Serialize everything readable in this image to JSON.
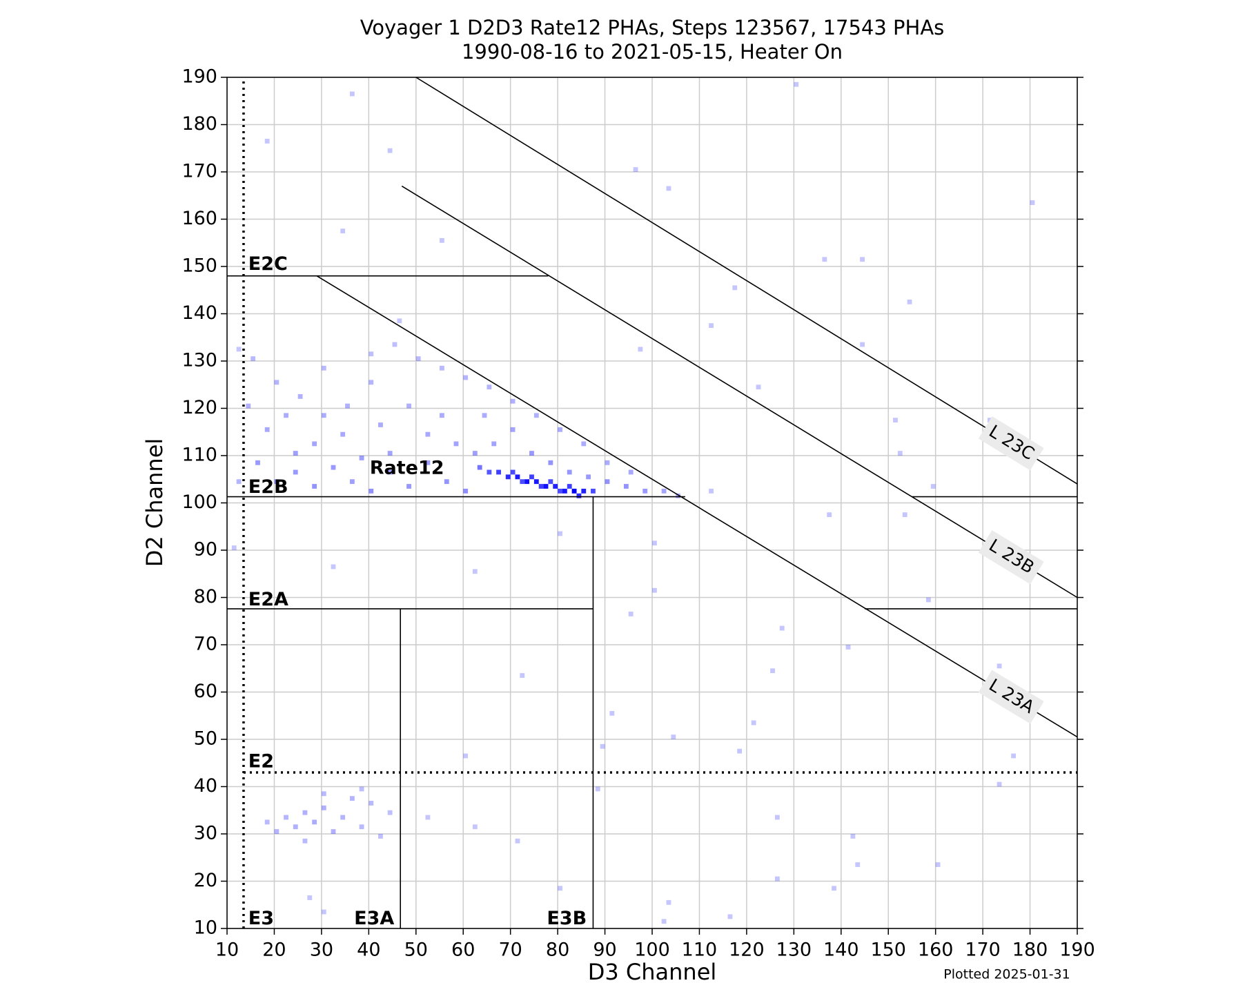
{
  "chart_data": {
    "type": "heatmap",
    "title": "Voyager 1 D2D3 Rate12 PHAs, Steps 123567, 17543 PHAs",
    "subtitle": "1990-08-16 to 2021-05-15, Heater On",
    "xlabel": "D3 Channel",
    "ylabel": "D2 Channel",
    "footer": "Plotted 2025-01-31",
    "xlim": [
      10,
      190
    ],
    "ylim": [
      10,
      190
    ],
    "xticks": [
      10,
      20,
      30,
      40,
      50,
      60,
      70,
      80,
      90,
      100,
      110,
      120,
      130,
      140,
      150,
      160,
      170,
      180,
      190
    ],
    "yticks": [
      10,
      20,
      30,
      40,
      50,
      60,
      70,
      80,
      90,
      100,
      110,
      120,
      130,
      140,
      150,
      160,
      170,
      180,
      190
    ],
    "grid": true,
    "color": "#0000ff",
    "cells": [
      {
        "x": 63,
        "y": 107,
        "count": 30
      },
      {
        "x": 65,
        "y": 106,
        "count": 50
      },
      {
        "x": 67,
        "y": 106,
        "count": 70
      },
      {
        "x": 69,
        "y": 105,
        "count": 90
      },
      {
        "x": 71,
        "y": 105,
        "count": 110
      },
      {
        "x": 73,
        "y": 104,
        "count": 120
      },
      {
        "x": 75,
        "y": 104,
        "count": 110
      },
      {
        "x": 77,
        "y": 103,
        "count": 120
      },
      {
        "x": 79,
        "y": 103,
        "count": 100
      },
      {
        "x": 81,
        "y": 102,
        "count": 110
      },
      {
        "x": 83,
        "y": 102,
        "count": 140
      },
      {
        "x": 85,
        "y": 102,
        "count": 100
      },
      {
        "x": 87,
        "y": 102,
        "count": 60
      },
      {
        "x": 70,
        "y": 106,
        "count": 60
      },
      {
        "x": 74,
        "y": 105,
        "count": 70
      },
      {
        "x": 78,
        "y": 104,
        "count": 60
      },
      {
        "x": 82,
        "y": 103,
        "count": 70
      },
      {
        "x": 84,
        "y": 101,
        "count": 90
      },
      {
        "x": 80,
        "y": 102,
        "count": 60
      },
      {
        "x": 76,
        "y": 103,
        "count": 70
      },
      {
        "x": 72,
        "y": 104,
        "count": 60
      },
      {
        "x": 16,
        "y": 108,
        "count": 12
      },
      {
        "x": 20,
        "y": 104,
        "count": 15
      },
      {
        "x": 24,
        "y": 110,
        "count": 10
      },
      {
        "x": 28,
        "y": 103,
        "count": 14
      },
      {
        "x": 32,
        "y": 107,
        "count": 12
      },
      {
        "x": 36,
        "y": 104,
        "count": 10
      },
      {
        "x": 40,
        "y": 102,
        "count": 15
      },
      {
        "x": 44,
        "y": 106,
        "count": 11
      },
      {
        "x": 48,
        "y": 103,
        "count": 13
      },
      {
        "x": 52,
        "y": 108,
        "count": 10
      },
      {
        "x": 56,
        "y": 104,
        "count": 14
      },
      {
        "x": 60,
        "y": 102,
        "count": 16
      },
      {
        "x": 62,
        "y": 110,
        "count": 10
      },
      {
        "x": 66,
        "y": 112,
        "count": 9
      },
      {
        "x": 70,
        "y": 115,
        "count": 8
      },
      {
        "x": 74,
        "y": 110,
        "count": 12
      },
      {
        "x": 78,
        "y": 108,
        "count": 14
      },
      {
        "x": 82,
        "y": 106,
        "count": 13
      },
      {
        "x": 86,
        "y": 105,
        "count": 12
      },
      {
        "x": 90,
        "y": 104,
        "count": 15
      },
      {
        "x": 94,
        "y": 103,
        "count": 14
      },
      {
        "x": 98,
        "y": 102,
        "count": 12
      },
      {
        "x": 102,
        "y": 102,
        "count": 8
      },
      {
        "x": 105,
        "y": 101,
        "count": 5
      },
      {
        "x": 90,
        "y": 108,
        "count": 6
      },
      {
        "x": 95,
        "y": 106,
        "count": 7
      },
      {
        "x": 85,
        "y": 112,
        "count": 6
      },
      {
        "x": 80,
        "y": 115,
        "count": 6
      },
      {
        "x": 75,
        "y": 118,
        "count": 5
      },
      {
        "x": 70,
        "y": 121,
        "count": 5
      },
      {
        "x": 65,
        "y": 124,
        "count": 4
      },
      {
        "x": 60,
        "y": 126,
        "count": 4
      },
      {
        "x": 55,
        "y": 128,
        "count": 3
      },
      {
        "x": 50,
        "y": 130,
        "count": 3
      },
      {
        "x": 45,
        "y": 133,
        "count": 2
      },
      {
        "x": 40,
        "y": 125,
        "count": 4
      },
      {
        "x": 35,
        "y": 120,
        "count": 5
      },
      {
        "x": 30,
        "y": 118,
        "count": 6
      },
      {
        "x": 25,
        "y": 122,
        "count": 5
      },
      {
        "x": 20,
        "y": 125,
        "count": 4
      },
      {
        "x": 15,
        "y": 130,
        "count": 3
      },
      {
        "x": 18,
        "y": 115,
        "count": 7
      },
      {
        "x": 22,
        "y": 118,
        "count": 6
      },
      {
        "x": 28,
        "y": 112,
        "count": 8
      },
      {
        "x": 34,
        "y": 114,
        "count": 7
      },
      {
        "x": 42,
        "y": 116,
        "count": 6
      },
      {
        "x": 48,
        "y": 120,
        "count": 5
      },
      {
        "x": 55,
        "y": 118,
        "count": 6
      },
      {
        "x": 58,
        "y": 112,
        "count": 9
      },
      {
        "x": 64,
        "y": 118,
        "count": 6
      },
      {
        "x": 44,
        "y": 110,
        "count": 9
      },
      {
        "x": 38,
        "y": 109,
        "count": 10
      },
      {
        "x": 52,
        "y": 114,
        "count": 7
      },
      {
        "x": 24,
        "y": 106,
        "count": 12
      },
      {
        "x": 12,
        "y": 104,
        "count": 4
      },
      {
        "x": 14,
        "y": 120,
        "count": 5
      },
      {
        "x": 46,
        "y": 138,
        "count": 1
      },
      {
        "x": 40,
        "y": 131,
        "count": 2
      },
      {
        "x": 30,
        "y": 128,
        "count": 3
      },
      {
        "x": 18,
        "y": 32,
        "count": 3
      },
      {
        "x": 20,
        "y": 30,
        "count": 4
      },
      {
        "x": 22,
        "y": 33,
        "count": 4
      },
      {
        "x": 24,
        "y": 31,
        "count": 5
      },
      {
        "x": 26,
        "y": 34,
        "count": 5
      },
      {
        "x": 28,
        "y": 32,
        "count": 6
      },
      {
        "x": 30,
        "y": 35,
        "count": 5
      },
      {
        "x": 32,
        "y": 30,
        "count": 5
      },
      {
        "x": 34,
        "y": 33,
        "count": 4
      },
      {
        "x": 36,
        "y": 37,
        "count": 4
      },
      {
        "x": 38,
        "y": 31,
        "count": 3
      },
      {
        "x": 40,
        "y": 36,
        "count": 3
      },
      {
        "x": 42,
        "y": 29,
        "count": 2
      },
      {
        "x": 44,
        "y": 34,
        "count": 2
      },
      {
        "x": 38,
        "y": 39,
        "count": 2
      },
      {
        "x": 26,
        "y": 28,
        "count": 3
      },
      {
        "x": 30,
        "y": 38,
        "count": 3
      },
      {
        "x": 18,
        "y": 176,
        "count": 1
      },
      {
        "x": 36,
        "y": 186,
        "count": 1
      },
      {
        "x": 44,
        "y": 174,
        "count": 1
      },
      {
        "x": 130,
        "y": 188,
        "count": 1
      },
      {
        "x": 96,
        "y": 170,
        "count": 1
      },
      {
        "x": 103,
        "y": 166,
        "count": 1
      },
      {
        "x": 180,
        "y": 163,
        "count": 1
      },
      {
        "x": 34,
        "y": 157,
        "count": 1
      },
      {
        "x": 55,
        "y": 155,
        "count": 1
      },
      {
        "x": 136,
        "y": 151,
        "count": 1
      },
      {
        "x": 144,
        "y": 151,
        "count": 1
      },
      {
        "x": 154,
        "y": 142,
        "count": 1
      },
      {
        "x": 117,
        "y": 145,
        "count": 1
      },
      {
        "x": 112,
        "y": 137,
        "count": 1
      },
      {
        "x": 144,
        "y": 133,
        "count": 1
      },
      {
        "x": 97,
        "y": 132,
        "count": 1
      },
      {
        "x": 122,
        "y": 124,
        "count": 1
      },
      {
        "x": 151,
        "y": 117,
        "count": 1
      },
      {
        "x": 171,
        "y": 117,
        "count": 1
      },
      {
        "x": 159,
        "y": 103,
        "count": 1
      },
      {
        "x": 152,
        "y": 110,
        "count": 1
      },
      {
        "x": 112,
        "y": 102,
        "count": 1
      },
      {
        "x": 137,
        "y": 97,
        "count": 1
      },
      {
        "x": 153,
        "y": 97,
        "count": 1
      },
      {
        "x": 80,
        "y": 93,
        "count": 1
      },
      {
        "x": 100,
        "y": 91,
        "count": 1
      },
      {
        "x": 62,
        "y": 85,
        "count": 1
      },
      {
        "x": 100,
        "y": 81,
        "count": 1
      },
      {
        "x": 32,
        "y": 86,
        "count": 1
      },
      {
        "x": 158,
        "y": 79,
        "count": 1
      },
      {
        "x": 95,
        "y": 76,
        "count": 1
      },
      {
        "x": 127,
        "y": 73,
        "count": 1
      },
      {
        "x": 141,
        "y": 69,
        "count": 1
      },
      {
        "x": 125,
        "y": 64,
        "count": 1
      },
      {
        "x": 72,
        "y": 63,
        "count": 1
      },
      {
        "x": 91,
        "y": 55,
        "count": 1
      },
      {
        "x": 121,
        "y": 53,
        "count": 1
      },
      {
        "x": 104,
        "y": 50,
        "count": 1
      },
      {
        "x": 173,
        "y": 65,
        "count": 1
      },
      {
        "x": 176,
        "y": 46,
        "count": 1
      },
      {
        "x": 173,
        "y": 40,
        "count": 1
      },
      {
        "x": 89,
        "y": 48,
        "count": 1
      },
      {
        "x": 52,
        "y": 33,
        "count": 1
      },
      {
        "x": 71,
        "y": 28,
        "count": 1
      },
      {
        "x": 62,
        "y": 31,
        "count": 1
      },
      {
        "x": 142,
        "y": 29,
        "count": 1
      },
      {
        "x": 143,
        "y": 23,
        "count": 1
      },
      {
        "x": 160,
        "y": 23,
        "count": 1
      },
      {
        "x": 126,
        "y": 33,
        "count": 1
      },
      {
        "x": 126,
        "y": 20,
        "count": 1
      },
      {
        "x": 138,
        "y": 18,
        "count": 1
      },
      {
        "x": 103,
        "y": 15,
        "count": 1
      },
      {
        "x": 102,
        "y": 11,
        "count": 1
      },
      {
        "x": 116,
        "y": 12,
        "count": 1
      },
      {
        "x": 80,
        "y": 18,
        "count": 1
      },
      {
        "x": 30,
        "y": 13,
        "count": 1
      },
      {
        "x": 27,
        "y": 16,
        "count": 1
      },
      {
        "x": 11,
        "y": 90,
        "count": 1
      },
      {
        "x": 12,
        "y": 132,
        "count": 1
      },
      {
        "x": 118,
        "y": 47,
        "count": 1
      },
      {
        "x": 60,
        "y": 46,
        "count": 1
      },
      {
        "x": 88,
        "y": 39,
        "count": 1
      }
    ],
    "boundaries": [
      {
        "x": [
          13.5,
          13.5
        ],
        "y": [
          10,
          190
        ],
        "style": "dotted"
      },
      {
        "x": [
          13.5,
          190
        ],
        "y": [
          43,
          43
        ],
        "style": "dotted"
      },
      {
        "x": [
          10,
          78
        ],
        "y": [
          148,
          148
        ],
        "style": "solid"
      },
      {
        "x": [
          10,
          107
        ],
        "y": [
          101.3,
          101.3
        ],
        "style": "solid"
      },
      {
        "x": [
          155,
          190
        ],
        "y": [
          101.3,
          101.3
        ],
        "style": "solid"
      },
      {
        "x": [
          10,
          87.5
        ],
        "y": [
          77.6,
          77.6
        ],
        "style": "solid"
      },
      {
        "x": [
          145,
          190
        ],
        "y": [
          77.6,
          77.6
        ],
        "style": "solid"
      },
      {
        "x": [
          46.7,
          46.7
        ],
        "y": [
          10,
          77.6
        ],
        "style": "solid"
      },
      {
        "x": [
          87.5,
          87.5
        ],
        "y": [
          10,
          101.3
        ],
        "style": "solid"
      },
      {
        "x": [
          29,
          190
        ],
        "y": [
          148,
          50.5
        ],
        "style": "solid",
        "label": "L 23A",
        "label_x": 176
      },
      {
        "x": [
          47,
          190
        ],
        "y": [
          167,
          80
        ],
        "style": "solid",
        "label": "L 23B",
        "label_x": 176
      },
      {
        "x": [
          50,
          190
        ],
        "y": [
          190,
          104
        ],
        "style": "solid",
        "label": "L 23C",
        "label_x": 176
      }
    ],
    "annotations": [
      {
        "text": "E2C",
        "x": 14.5,
        "y": 149.3
      },
      {
        "text": "E2B",
        "x": 14.5,
        "y": 102.1
      },
      {
        "text": "E2A",
        "x": 14.5,
        "y": 78.3
      },
      {
        "text": "E2",
        "x": 14.5,
        "y": 44.1
      },
      {
        "text": "E3",
        "x": 14.5,
        "y": 10.9
      },
      {
        "text": "E3A",
        "x": 36.9,
        "y": 10.9
      },
      {
        "text": "E3B",
        "x": 77.7,
        "y": 10.9
      },
      {
        "text": "Rate12",
        "x": 40.2,
        "y": 106.1
      }
    ]
  }
}
